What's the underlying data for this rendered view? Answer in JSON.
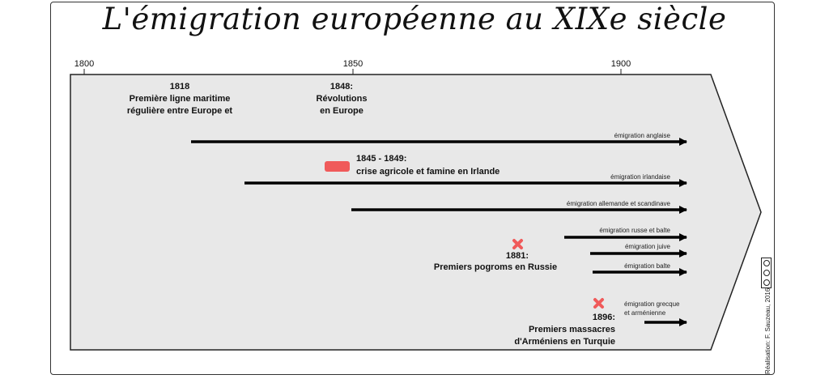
{
  "title": "L'émigration européenne au XIXe siècle",
  "axis": {
    "ticks": [
      "1800",
      "1850",
      "1900"
    ]
  },
  "events": [
    {
      "year": "1818",
      "lines": [
        "Première ligne maritime",
        "régulière entre Europe et"
      ]
    },
    {
      "year": "1848:",
      "lines": [
        "Révolutions",
        "en Europe"
      ]
    },
    {
      "year": "1845 - 1849:",
      "lines": [
        "crise agricole et famine en Irlande"
      ]
    },
    {
      "year": "1881:",
      "lines": [
        "Premiers pogroms en Russie"
      ]
    },
    {
      "year": "1896:",
      "lines": [
        "Premiers massacres",
        "d'Arméniens en Turquie"
      ]
    }
  ],
  "flows": [
    {
      "label": "émigration anglaise"
    },
    {
      "label": "émigration irlandaise"
    },
    {
      "label": "émigration allemande et scandinave"
    },
    {
      "label": "émigration russe et balte"
    },
    {
      "label": "émigration juive"
    },
    {
      "label": "émigration balte"
    },
    {
      "label_lines": [
        "émigration grecque",
        "et arménienne"
      ]
    }
  ],
  "credit": "Réalisation: F. Sauzeau, 2016",
  "colors": {
    "band": "#e8e8e8",
    "marker": "#f05a5a",
    "arrow": "#000000"
  }
}
